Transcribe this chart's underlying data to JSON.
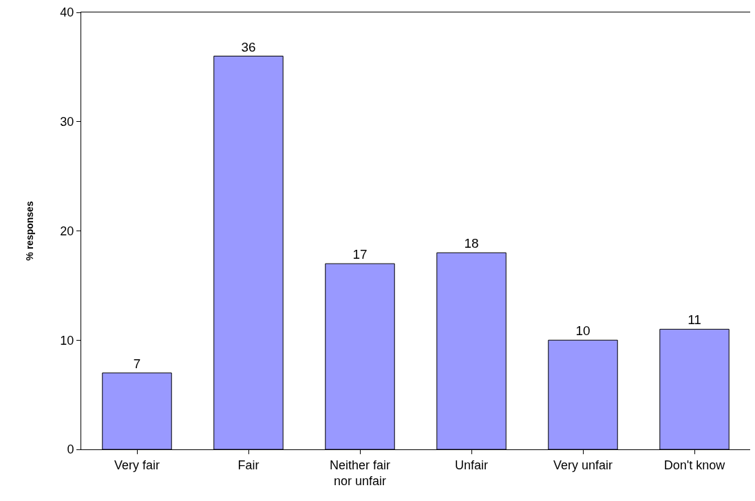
{
  "chart_data": {
    "type": "bar",
    "ylabel": "% responses",
    "categories": [
      "Very fair",
      "Fair",
      "Neither fair\nnor unfair",
      "Unfair",
      "Very unfair",
      "Don't know"
    ],
    "values": [
      7,
      36,
      17,
      18,
      10,
      11
    ],
    "color": "#9999ff",
    "ylim": [
      0,
      40
    ],
    "yticks": [
      0,
      10,
      20,
      30,
      40
    ],
    "grid": false,
    "legend": false,
    "data_labels": true
  }
}
